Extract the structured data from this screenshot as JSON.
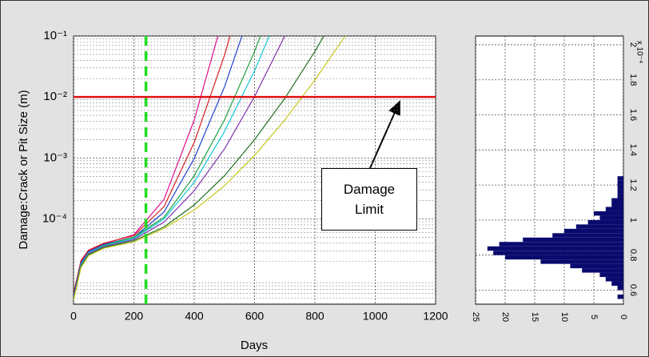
{
  "chart_data": [
    {
      "type": "line",
      "ylabel": "Damage:Crack or Pit Size (m)",
      "xlabel": "Days",
      "x": [
        0,
        25,
        50,
        100,
        200,
        300,
        400,
        500,
        600,
        700,
        800,
        900
      ],
      "xlim": [
        0,
        1200
      ],
      "xticks": [
        0,
        200,
        400,
        600,
        800,
        1000,
        1200
      ],
      "ylim": [
        4e-06,
        0.1
      ],
      "yticks": [
        {
          "value": 0.1,
          "label": "10⁻¹"
        },
        {
          "value": 0.01,
          "label": "10⁻²"
        },
        {
          "value": 0.001,
          "label": "10⁻³"
        },
        {
          "value": 0.0001,
          "label": "10⁻⁴"
        }
      ],
      "log_y": true,
      "grid": true,
      "series": [
        {
          "color": "#e0108a",
          "values": [
            6e-06,
            2e-05,
            3e-05,
            3.9e-05,
            5.5e-05,
            0.00021,
            0.0042,
            0.24,
            null,
            null,
            null,
            null
          ]
        },
        {
          "color": "#d62020",
          "values": [
            6e-06,
            2.1e-05,
            3.1e-05,
            4e-05,
            5.3e-05,
            0.00016,
            0.0018,
            0.048,
            2.6,
            null,
            null,
            null
          ]
        },
        {
          "color": "#2040d0",
          "values": [
            5.5e-06,
            1.9e-05,
            2.9e-05,
            3.8e-05,
            5e-05,
            0.00013,
            0.00098,
            0.0146,
            0.4,
            null,
            null,
            null
          ]
        },
        {
          "color": "#20a040",
          "values": [
            5e-06,
            1.8e-05,
            2.8e-05,
            3.7e-05,
            5e-05,
            0.000107,
            0.00051,
            0.0042,
            0.056,
            1.15,
            null,
            null
          ]
        },
        {
          "color": "#10c8d8",
          "values": [
            5e-06,
            1.8e-05,
            2.8e-05,
            3.6e-05,
            4.8e-05,
            0.0001,
            0.0004,
            0.0027,
            0.027,
            0.4,
            null,
            null
          ]
        },
        {
          "color": "#8030b0",
          "values": [
            5e-06,
            1.7e-05,
            2.7e-05,
            3.5e-05,
            4.6e-05,
            8.9e-05,
            0.00029,
            0.0014,
            0.0102,
            0.1,
            1.3,
            null
          ]
        },
        {
          "color": "#207020",
          "values": [
            4.8e-06,
            1.7e-05,
            2.6e-05,
            3.4e-05,
            4.4e-05,
            7.4e-05,
            0.00017,
            0.00051,
            0.002,
            0.0095,
            0.056,
            0.4
          ]
        },
        {
          "color": "#c8c820",
          "values": [
            4.6e-06,
            1.6e-05,
            2.5e-05,
            3.3e-05,
            4.2e-05,
            7e-05,
            0.00014,
            0.00035,
            0.0011,
            0.0042,
            0.019,
            0.1
          ]
        }
      ],
      "threshold": {
        "value": 0.01,
        "color": "#e01010"
      },
      "marker_x": {
        "value": 240,
        "color": "#22dd22"
      },
      "annotation": "Damage Limit"
    },
    {
      "type": "histogram",
      "orientation": "horizontal",
      "bins": [
        0.55,
        0.575,
        0.6,
        0.625,
        0.65,
        0.675,
        0.7,
        0.725,
        0.75,
        0.775,
        0.8,
        0.825,
        0.85,
        0.875,
        0.9,
        0.925,
        0.95,
        0.975,
        1.0,
        1.025,
        1.05,
        1.075,
        1.1,
        1.125,
        1.15,
        1.175,
        1.2,
        1.225,
        1.25
      ],
      "counts": [
        1,
        0,
        1,
        2,
        3,
        4,
        7,
        9,
        14,
        20,
        22,
        23,
        21,
        17,
        12,
        10,
        8,
        6,
        4,
        5,
        3,
        2,
        2,
        1,
        1,
        1,
        1,
        1
      ],
      "color": "#0a0a6e",
      "ylim": [
        0.52,
        2.05
      ],
      "yticks": [
        0.6,
        0.8,
        1,
        1.2,
        1.4,
        1.6,
        1.8,
        2
      ],
      "xlim": [
        25,
        0
      ],
      "xticks": [
        25,
        20,
        15,
        10,
        5,
        0
      ],
      "axis_multiplier": "x 10⁻⁴",
      "grid": true
    }
  ]
}
